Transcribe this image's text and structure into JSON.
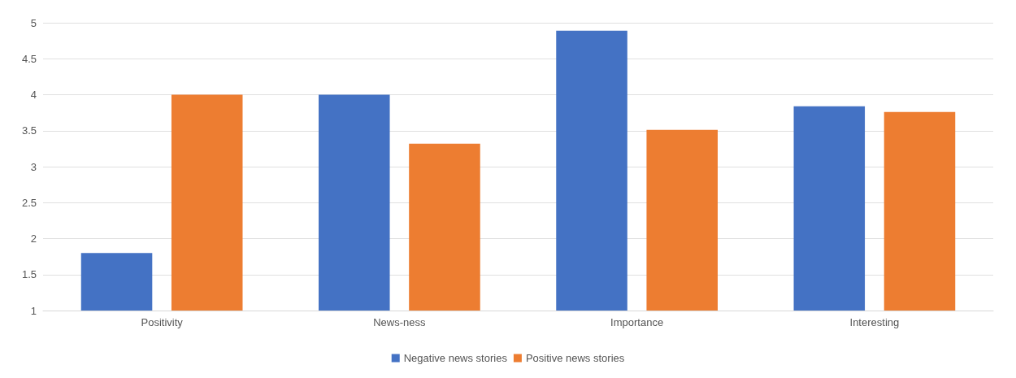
{
  "chart_data": {
    "type": "bar",
    "categories": [
      "Positivity",
      "News-ness",
      "Importance",
      "Interesting"
    ],
    "series": [
      {
        "name": "Negative news stories",
        "color": "#4472c4",
        "values": [
          1.8,
          4.0,
          4.89,
          3.84
        ]
      },
      {
        "name": "Positive news stories",
        "color": "#ed7d31",
        "values": [
          4.0,
          3.32,
          3.51,
          3.76
        ]
      }
    ],
    "ylim": [
      1,
      5
    ],
    "yticks": [
      1,
      1.5,
      2,
      2.5,
      3,
      3.5,
      4,
      4.5,
      5
    ],
    "grid": "y",
    "legend": "bottom"
  }
}
